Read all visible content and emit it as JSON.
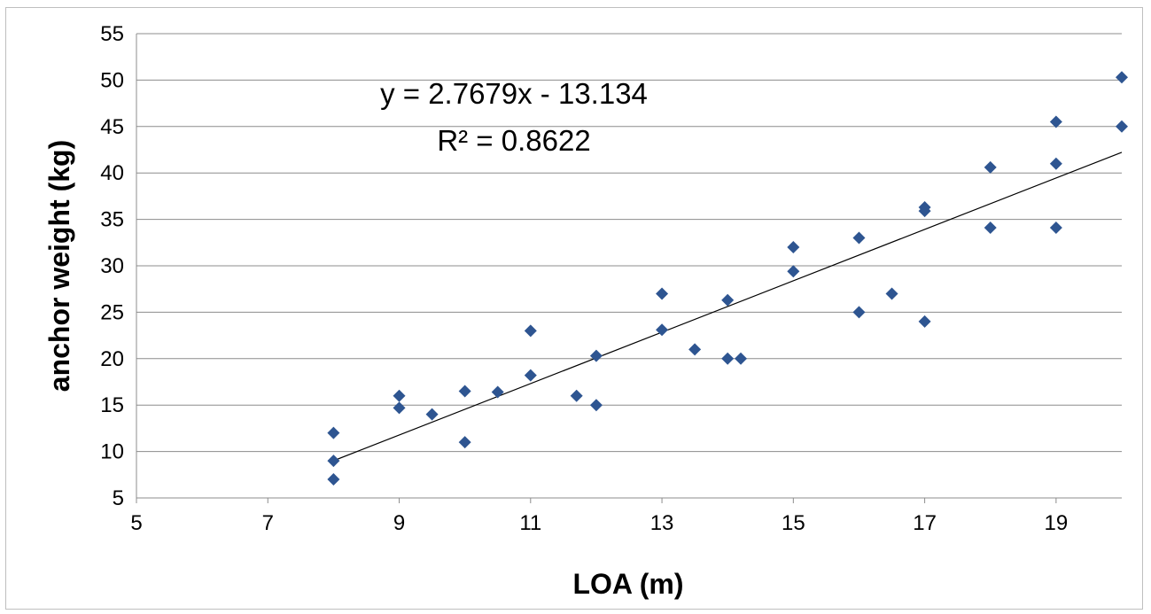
{
  "chart_data": {
    "type": "scatter",
    "title": "",
    "xlabel": "LOA (m)",
    "ylabel": "anchor weight (kg)",
    "xlim": [
      5,
      20
    ],
    "ylim": [
      5,
      55
    ],
    "x_ticks": [
      5,
      7,
      9,
      11,
      13,
      15,
      17,
      19
    ],
    "y_ticks": [
      5,
      10,
      15,
      20,
      25,
      30,
      35,
      40,
      45,
      50,
      55
    ],
    "grid": "horizontal",
    "legend": "none",
    "marker_color": "#2E5591",
    "trendline_color": "#000000",
    "series": [
      {
        "marker": "diamond",
        "points": [
          [
            8,
            12
          ],
          [
            8,
            9
          ],
          [
            8,
            7
          ],
          [
            9,
            16
          ],
          [
            9,
            14.7
          ],
          [
            9.5,
            14
          ],
          [
            10,
            16.5
          ],
          [
            10,
            11
          ],
          [
            10.5,
            16.4
          ],
          [
            11,
            23
          ],
          [
            11,
            18.2
          ],
          [
            11.7,
            16
          ],
          [
            12,
            20.3
          ],
          [
            12,
            15
          ],
          [
            13,
            27
          ],
          [
            13,
            23.1
          ],
          [
            13.5,
            21
          ],
          [
            14,
            26.3
          ],
          [
            14,
            20
          ],
          [
            14.2,
            20
          ],
          [
            15,
            32
          ],
          [
            15,
            29.4
          ],
          [
            16,
            33
          ],
          [
            16,
            25
          ],
          [
            16.5,
            27
          ],
          [
            17,
            36.3
          ],
          [
            17,
            35.9
          ],
          [
            17,
            24
          ],
          [
            18,
            40.6
          ],
          [
            18,
            34.1
          ],
          [
            19,
            45.5
          ],
          [
            19,
            41
          ],
          [
            19,
            34.1
          ],
          [
            20,
            50.3
          ],
          [
            20,
            45
          ]
        ]
      }
    ],
    "trendline": {
      "slope": 2.7679,
      "intercept": -13.134,
      "x_range": [
        8,
        20
      ],
      "equation": "y = 2.7679x - 13.134",
      "r_squared": "R² = 0.8622"
    }
  }
}
